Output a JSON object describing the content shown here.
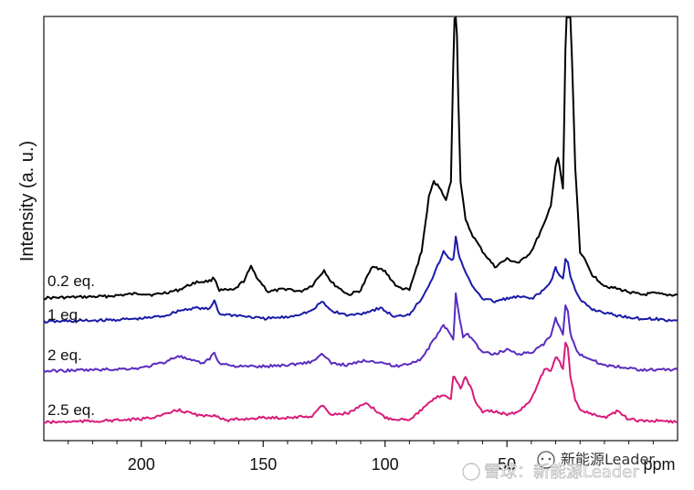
{
  "chart_data": {
    "type": "line",
    "xlabel": "",
    "x_unit": "ppm",
    "ylabel": "Intensity (a. u.)",
    "xlim": [
      240,
      -20
    ],
    "x_ticks": [
      200,
      150,
      100,
      50
    ],
    "x_tick_labels": [
      "200",
      "150",
      "100",
      "50"
    ],
    "grid": false,
    "series": [
      {
        "name": "0.2 eq.",
        "color": "#000000",
        "baseline": 0,
        "points": [
          [
            240,
            0
          ],
          [
            215,
            2
          ],
          [
            200,
            6
          ],
          [
            195,
            4
          ],
          [
            185,
            10
          ],
          [
            178,
            20
          ],
          [
            172,
            22
          ],
          [
            170,
            26
          ],
          [
            168,
            10
          ],
          [
            162,
            10
          ],
          [
            158,
            22
          ],
          [
            155,
            40
          ],
          [
            152,
            24
          ],
          [
            148,
            8
          ],
          [
            140,
            12
          ],
          [
            135,
            8
          ],
          [
            130,
            16
          ],
          [
            125,
            36
          ],
          [
            122,
            20
          ],
          [
            115,
            4
          ],
          [
            110,
            10
          ],
          [
            105,
            42
          ],
          [
            100,
            34
          ],
          [
            95,
            14
          ],
          [
            90,
            10
          ],
          [
            85,
            60
          ],
          [
            82,
            130
          ],
          [
            80,
            150
          ],
          [
            77,
            140
          ],
          [
            75,
            125
          ],
          [
            73,
            150
          ],
          [
            72,
            300
          ],
          [
            71,
            420
          ],
          [
            70,
            260
          ],
          [
            69,
            150
          ],
          [
            67,
            100
          ],
          [
            64,
            80
          ],
          [
            60,
            60
          ],
          [
            55,
            40
          ],
          [
            50,
            50
          ],
          [
            45,
            45
          ],
          [
            40,
            60
          ],
          [
            37,
            80
          ],
          [
            34,
            100
          ],
          [
            32,
            120
          ],
          [
            30,
            170
          ],
          [
            29,
            180
          ],
          [
            27,
            140
          ],
          [
            26,
            320
          ],
          [
            25,
            420
          ],
          [
            24,
            380
          ],
          [
            22,
            170
          ],
          [
            20,
            60
          ],
          [
            15,
            30
          ],
          [
            10,
            16
          ],
          [
            5,
            12
          ],
          [
            0,
            8
          ],
          [
            -5,
            4
          ],
          [
            -10,
            6
          ],
          [
            -15,
            4
          ],
          [
            -20,
            4
          ]
        ]
      },
      {
        "name": "1 eq.",
        "color": "#1a1aa8",
        "baseline": 0,
        "points": [
          [
            240,
            0
          ],
          [
            215,
            2
          ],
          [
            200,
            4
          ],
          [
            190,
            8
          ],
          [
            185,
            14
          ],
          [
            178,
            18
          ],
          [
            172,
            16
          ],
          [
            170,
            28
          ],
          [
            168,
            10
          ],
          [
            160,
            8
          ],
          [
            150,
            4
          ],
          [
            140,
            6
          ],
          [
            130,
            14
          ],
          [
            126,
            26
          ],
          [
            122,
            14
          ],
          [
            115,
            8
          ],
          [
            108,
            12
          ],
          [
            102,
            18
          ],
          [
            96,
            6
          ],
          [
            90,
            10
          ],
          [
            85,
            30
          ],
          [
            80,
            60
          ],
          [
            76,
            90
          ],
          [
            74,
            82
          ],
          [
            72,
            80
          ],
          [
            71,
            110
          ],
          [
            70,
            90
          ],
          [
            68,
            70
          ],
          [
            65,
            50
          ],
          [
            60,
            30
          ],
          [
            55,
            26
          ],
          [
            50,
            30
          ],
          [
            45,
            32
          ],
          [
            40,
            30
          ],
          [
            35,
            40
          ],
          [
            32,
            52
          ],
          [
            30,
            70
          ],
          [
            29,
            62
          ],
          [
            27,
            55
          ],
          [
            26,
            80
          ],
          [
            25,
            78
          ],
          [
            24,
            60
          ],
          [
            22,
            40
          ],
          [
            20,
            28
          ],
          [
            15,
            16
          ],
          [
            10,
            12
          ],
          [
            5,
            8
          ],
          [
            0,
            6
          ],
          [
            -5,
            4
          ],
          [
            -10,
            4
          ],
          [
            -15,
            2
          ],
          [
            -20,
            2
          ]
        ]
      },
      {
        "name": "2 eq.",
        "color": "#5a2cc0",
        "baseline": 0,
        "points": [
          [
            240,
            0
          ],
          [
            215,
            2
          ],
          [
            200,
            4
          ],
          [
            190,
            12
          ],
          [
            185,
            20
          ],
          [
            180,
            14
          ],
          [
            175,
            10
          ],
          [
            172,
            16
          ],
          [
            170,
            24
          ],
          [
            168,
            10
          ],
          [
            160,
            6
          ],
          [
            150,
            6
          ],
          [
            140,
            8
          ],
          [
            130,
            12
          ],
          [
            126,
            22
          ],
          [
            122,
            10
          ],
          [
            115,
            8
          ],
          [
            108,
            14
          ],
          [
            102,
            12
          ],
          [
            96,
            6
          ],
          [
            90,
            10
          ],
          [
            85,
            16
          ],
          [
            80,
            40
          ],
          [
            76,
            60
          ],
          [
            74,
            50
          ],
          [
            72,
            40
          ],
          [
            71,
            100
          ],
          [
            70,
            80
          ],
          [
            68,
            44
          ],
          [
            66,
            48
          ],
          [
            64,
            40
          ],
          [
            60,
            24
          ],
          [
            55,
            22
          ],
          [
            50,
            28
          ],
          [
            45,
            22
          ],
          [
            40,
            24
          ],
          [
            35,
            34
          ],
          [
            32,
            46
          ],
          [
            30,
            68
          ],
          [
            29,
            60
          ],
          [
            27,
            46
          ],
          [
            26,
            84
          ],
          [
            25,
            76
          ],
          [
            24,
            50
          ],
          [
            22,
            30
          ],
          [
            20,
            22
          ],
          [
            15,
            14
          ],
          [
            10,
            8
          ],
          [
            5,
            6
          ],
          [
            0,
            4
          ],
          [
            -5,
            2
          ],
          [
            -10,
            2
          ],
          [
            -15,
            2
          ],
          [
            -20,
            2
          ]
        ]
      },
      {
        "name": "2.5 eq.",
        "color": "#d81b7a",
        "baseline": 0,
        "points": [
          [
            240,
            0
          ],
          [
            215,
            2
          ],
          [
            200,
            4
          ],
          [
            190,
            10
          ],
          [
            185,
            16
          ],
          [
            180,
            12
          ],
          [
            175,
            8
          ],
          [
            172,
            8
          ],
          [
            170,
            10
          ],
          [
            165,
            2
          ],
          [
            160,
            4
          ],
          [
            150,
            6
          ],
          [
            140,
            6
          ],
          [
            130,
            8
          ],
          [
            126,
            22
          ],
          [
            122,
            10
          ],
          [
            115,
            12
          ],
          [
            108,
            24
          ],
          [
            104,
            16
          ],
          [
            100,
            6
          ],
          [
            95,
            4
          ],
          [
            90,
            4
          ],
          [
            85,
            16
          ],
          [
            80,
            30
          ],
          [
            76,
            36
          ],
          [
            73,
            30
          ],
          [
            72,
            60
          ],
          [
            71,
            56
          ],
          [
            69,
            44
          ],
          [
            67,
            58
          ],
          [
            65,
            46
          ],
          [
            62,
            20
          ],
          [
            60,
            14
          ],
          [
            55,
            14
          ],
          [
            50,
            10
          ],
          [
            45,
            14
          ],
          [
            40,
            30
          ],
          [
            36,
            60
          ],
          [
            34,
            70
          ],
          [
            32,
            66
          ],
          [
            30,
            84
          ],
          [
            29,
            80
          ],
          [
            27,
            70
          ],
          [
            26,
            104
          ],
          [
            25,
            96
          ],
          [
            24,
            60
          ],
          [
            22,
            30
          ],
          [
            20,
            16
          ],
          [
            15,
            10
          ],
          [
            10,
            6
          ],
          [
            5,
            14
          ],
          [
            0,
            4
          ],
          [
            -5,
            2
          ],
          [
            -10,
            2
          ],
          [
            -15,
            2
          ],
          [
            -20,
            0
          ]
        ]
      }
    ]
  },
  "watermark": {
    "line1": "新能源Leader",
    "line2": "雪球：新能源Leader",
    "icon": "chat-bubble-icon"
  }
}
